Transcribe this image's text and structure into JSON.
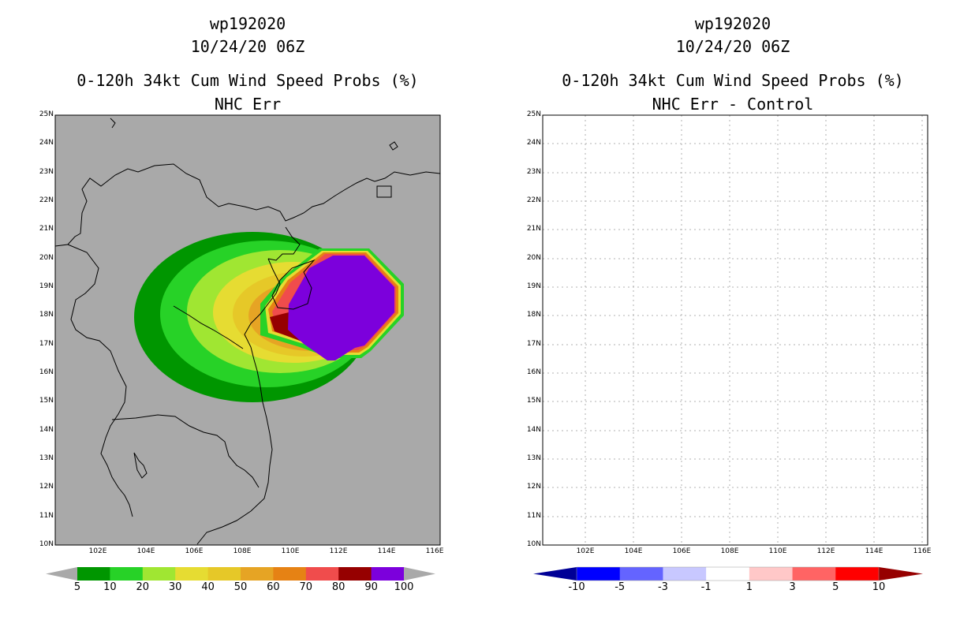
{
  "left_panel": {
    "title_line1": "wp192020",
    "title_line2": "10/24/20 06Z",
    "title_line3": "0-120h 34kt Cum Wind Speed Probs (%)",
    "title_line4": "NHC Err",
    "background_color": "#a9a9a9",
    "colorbar": {
      "labels": [
        "5",
        "10",
        "20",
        "30",
        "40",
        "50",
        "60",
        "70",
        "80",
        "90",
        "100"
      ],
      "colors": [
        "#009600",
        "#27d227",
        "#a0e632",
        "#e6dc32",
        "#e6c828",
        "#e6a424",
        "#e68214",
        "#f04c4c",
        "#960000",
        "#7c00dc"
      ]
    },
    "probability_contours_pct": [
      5,
      10,
      20,
      30,
      40,
      50,
      60,
      70,
      80,
      90,
      100
    ]
  },
  "right_panel": {
    "title_line1": "wp192020",
    "title_line2": "10/24/20 06Z",
    "title_line3": "0-120h 34kt Cum Wind Speed Probs (%)",
    "title_line4": "NHC Err - Control",
    "background_color": "#ffffff",
    "colorbar": {
      "labels": [
        "-10",
        "-5",
        "-3",
        "-1",
        "1",
        "3",
        "5",
        "10"
      ],
      "colors": [
        "#000096",
        "#0000ff",
        "#6464ff",
        "#c8c8ff",
        "#ffffff",
        "#ffc8c8",
        "#ff6464",
        "#ff0000",
        "#960000"
      ]
    }
  },
  "axes": {
    "lat_labels": [
      "25N",
      "24N",
      "23N",
      "22N",
      "21N",
      "20N",
      "19N",
      "18N",
      "17N",
      "16N",
      "15N",
      "14N",
      "13N",
      "12N",
      "11N",
      "10N"
    ],
    "lon_labels": [
      "102E",
      "104E",
      "106E",
      "108E",
      "110E",
      "112E",
      "114E",
      "116E"
    ]
  }
}
